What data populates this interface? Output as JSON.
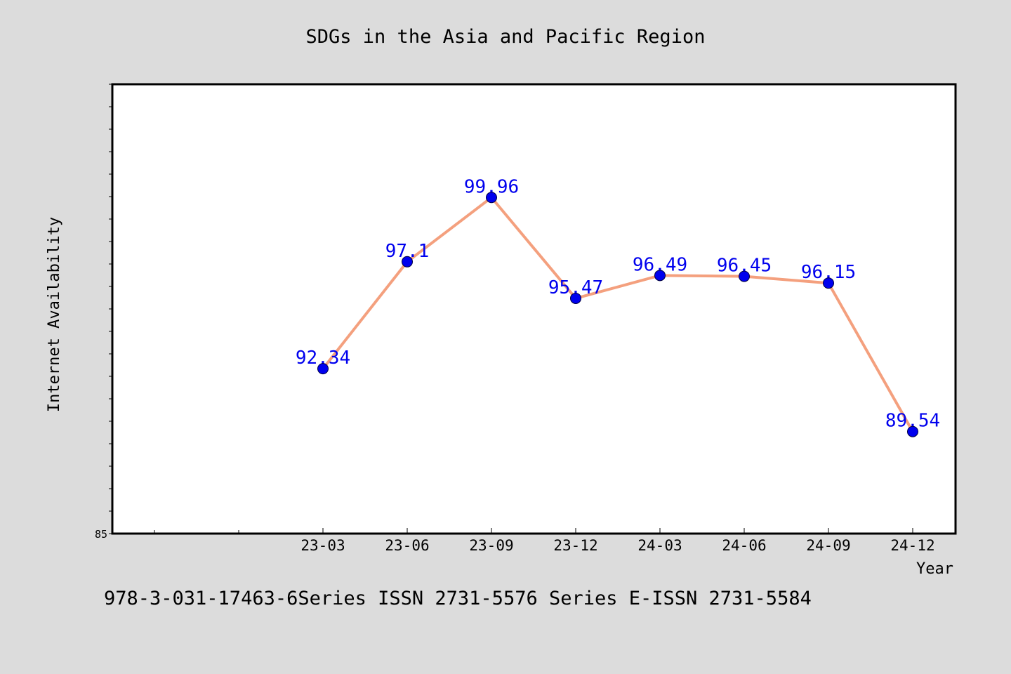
{
  "chart_data": {
    "type": "line",
    "title": "SDGs in the Asia and Pacific Region",
    "xlabel": "Year",
    "ylabel": "Internet Availability",
    "categories": [
      "23-03",
      "23-06",
      "23-09",
      "23-12",
      "24-03",
      "24-06",
      "24-09",
      "24-12"
    ],
    "series": [
      {
        "values": [
          92.34,
          97.1,
          99.96,
          95.47,
          96.49,
          96.45,
          96.15,
          89.54
        ],
        "labels": [
          "92.34",
          "97.1",
          "99.96",
          "95.47",
          "96.49",
          "96.45",
          "96.15",
          "89.54"
        ]
      }
    ],
    "ylim": [
      85,
      105
    ],
    "yticks_labeled": [
      "85"
    ],
    "grid": false,
    "line_color": "#f4a07e",
    "marker_color": "#0000ee",
    "label_color": "#0000ee",
    "background_color": "#dcdcdc",
    "plot_background": "#ffffff"
  },
  "footer": "978-3-031-17463-6Series ISSN 2731-5576 Series E-ISSN 2731-5584"
}
